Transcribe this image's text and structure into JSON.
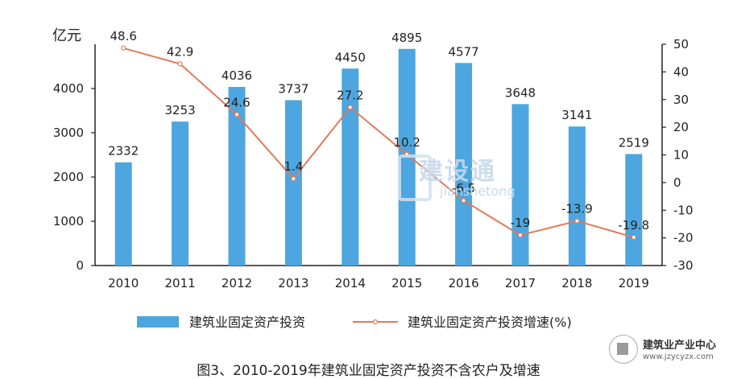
{
  "chart_data": {
    "type": "bar+line",
    "categories": [
      "2010",
      "2011",
      "2012",
      "2013",
      "2014",
      "2015",
      "2016",
      "2017",
      "2018",
      "2019"
    ],
    "bar_series": {
      "name": "建筑业固定资产投资",
      "values": [
        2332,
        3253,
        4036,
        3737,
        4450,
        4895,
        4577,
        3648,
        3141,
        2519
      ],
      "labels": [
        "2332",
        "3253",
        "4036",
        "3737",
        "4450",
        "4895",
        "4577",
        "3648",
        "3141",
        "2519"
      ],
      "color": "#4da6df"
    },
    "line_series": {
      "name": "建筑业固定资产投资增速(%)",
      "values": [
        48.6,
        42.9,
        24.6,
        1.4,
        27.2,
        10.2,
        -6.5,
        -19,
        -13.9,
        -19.8
      ],
      "labels": [
        "48.6",
        "42.9",
        "24.6",
        "1.4",
        "27.2",
        "10.2",
        "-6.5",
        "-19",
        "-13.9",
        "-19.8"
      ],
      "color": "#e07a5a"
    },
    "y_left": {
      "label": "亿元",
      "range": [
        0,
        5000
      ],
      "ticks": [
        "0",
        "1000",
        "2000",
        "3000",
        "4000"
      ]
    },
    "y_right": {
      "range": [
        -30,
        50
      ],
      "ticks": [
        "-30",
        "-20",
        "-10",
        "0",
        "10",
        "20",
        "30",
        "40",
        "50"
      ]
    },
    "legend_position": "bottom",
    "caption": "图3、2010-2019年建筑业固定资产投资不含农户及增速"
  },
  "watermark": {
    "main": "建设通",
    "sub": "jianshetong"
  },
  "logo": {
    "title": "建筑业产业中心",
    "url": "www.jzycyzx.com"
  }
}
